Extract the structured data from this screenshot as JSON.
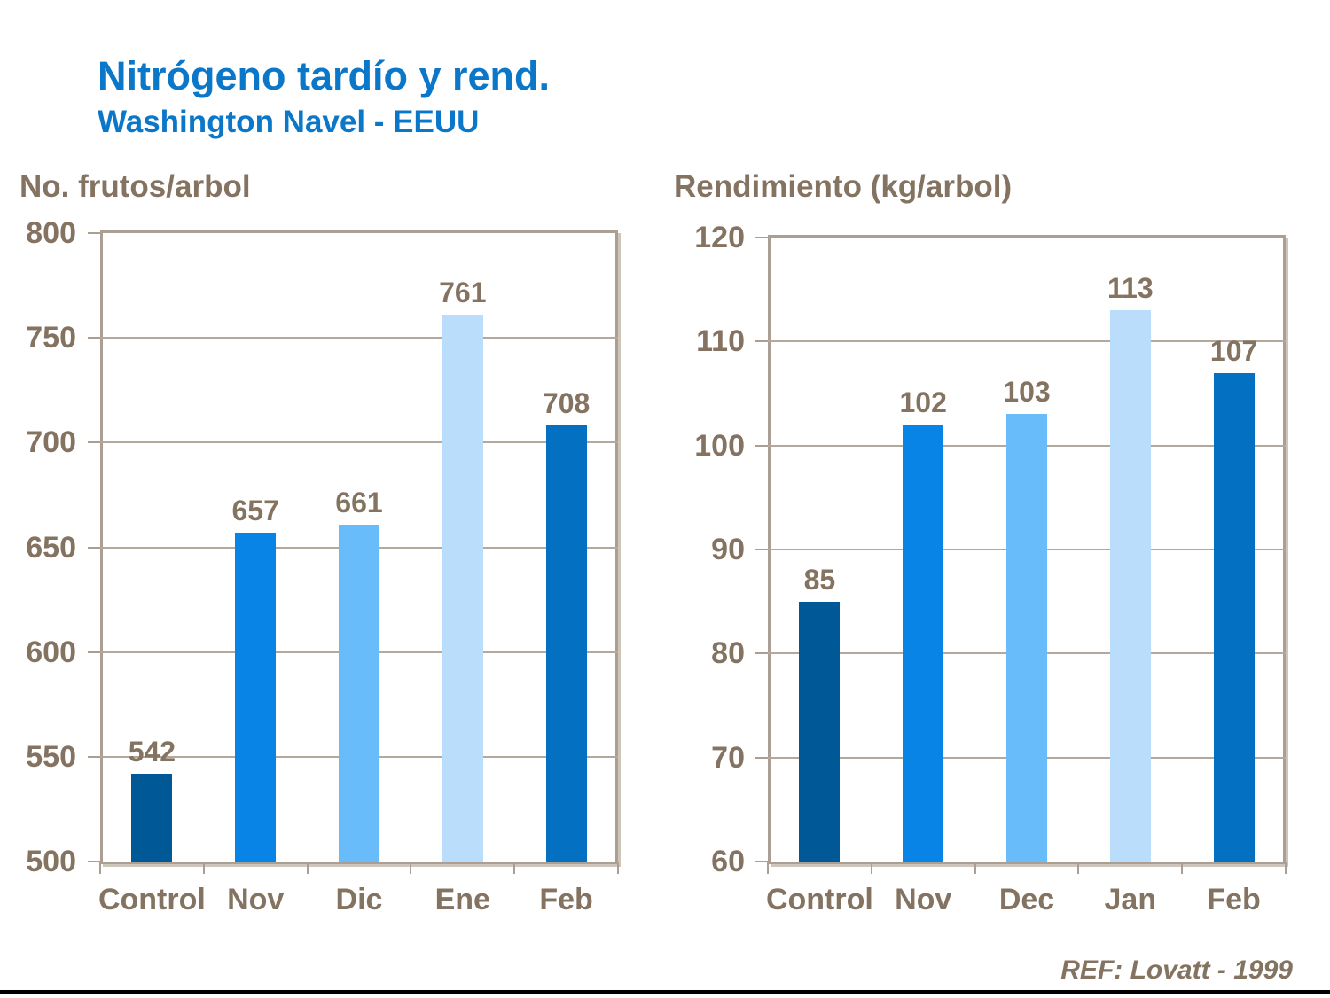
{
  "slide": {
    "title": "Nitrógeno tardío y rend.",
    "subtitle": "Washington Navel - EEUU",
    "reference": "REF: Lovatt - 1999",
    "colors": {
      "title_blue": "#0b77c8",
      "axis_text_brown": "#847361",
      "frame_tan": "#ab9e92",
      "gridline_tan": "#b4a89c",
      "footer_black": "#000000"
    }
  },
  "chart_data": [
    {
      "type": "bar",
      "title": "No. frutos/arbol",
      "categories": [
        "Control",
        "Nov",
        "Dic",
        "Ene",
        "Feb"
      ],
      "values": [
        542,
        657,
        661,
        761,
        708
      ],
      "bar_colors": [
        "#005897",
        "#0884e6",
        "#67bcf9",
        "#b9ddfa",
        "#0470c2"
      ],
      "ylim": [
        500,
        800
      ],
      "ytick_step": 50,
      "grid": true,
      "legend": "none"
    },
    {
      "type": "bar",
      "title": "Rendimiento (kg/arbol)",
      "categories": [
        "Control",
        "Nov",
        "Dec",
        "Jan",
        "Feb"
      ],
      "values": [
        85,
        102,
        103,
        113,
        107
      ],
      "bar_colors": [
        "#005897",
        "#0884e6",
        "#67bcf9",
        "#b9ddfa",
        "#0470c2"
      ],
      "ylim": [
        60,
        120
      ],
      "ytick_step": 10,
      "grid": true,
      "legend": "none"
    }
  ]
}
